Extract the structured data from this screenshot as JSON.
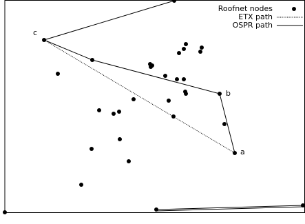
{
  "figure": {
    "node_labels": {
      "c": "c",
      "b": "b",
      "a": "a"
    },
    "legend": {
      "entries": [
        {
          "label": "Roofnet nodes",
          "kind": "marker"
        },
        {
          "label": "ETX path",
          "kind": "dotted"
        },
        {
          "label": "OSPR path",
          "kind": "solid"
        }
      ]
    },
    "colors": {
      "ink": "#000000",
      "background": "#ffffff"
    },
    "marker": "filled-circle"
  }
}
